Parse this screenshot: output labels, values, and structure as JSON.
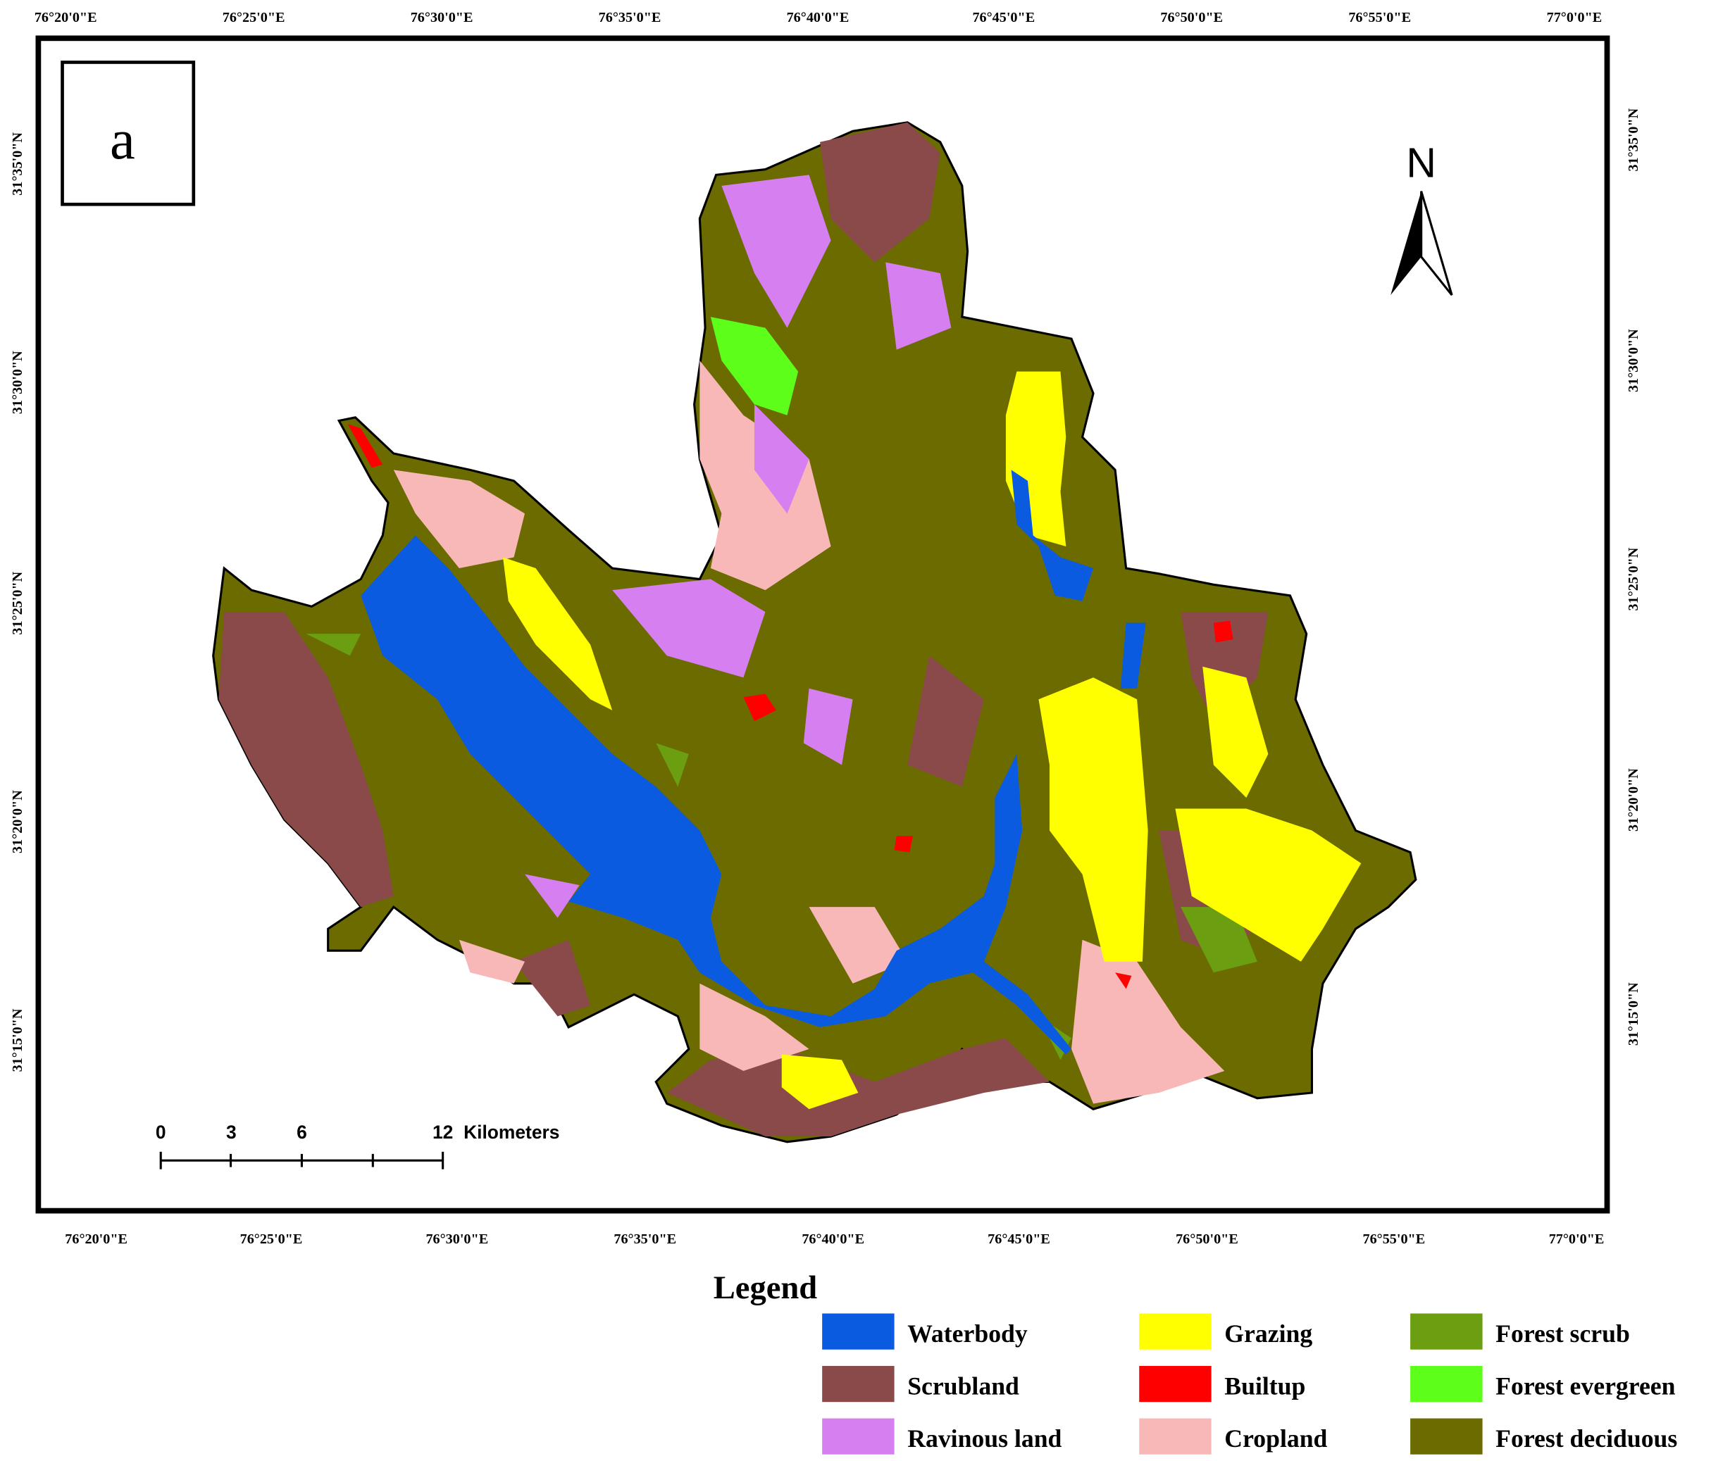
{
  "panel_label": "a",
  "north_label": "N",
  "axes": {
    "top": [
      "76°20'0\"E",
      "76°25'0\"E",
      "76°30'0\"E",
      "76°35'0\"E",
      "76°40'0\"E",
      "76°45'0\"E",
      "76°50'0\"E",
      "76°55'0\"E",
      "77°0'0\"E"
    ],
    "bottom": [
      "76°20'0\"E",
      "76°25'0\"E",
      "76°30'0\"E",
      "76°35'0\"E",
      "76°40'0\"E",
      "76°45'0\"E",
      "76°50'0\"E",
      "76°55'0\"E",
      "77°0'0\"E"
    ],
    "left": [
      "31°35'0\"N",
      "31°30'0\"N",
      "31°25'0\"N",
      "31°20'0\"N",
      "31°15'0\"N"
    ],
    "right": [
      "31°35'0\"N",
      "31°30'0\"N",
      "31°25'0\"N",
      "31°20'0\"N",
      "31°15'0\"N"
    ]
  },
  "scale_bar": {
    "ticks": [
      0,
      3,
      6,
      12
    ],
    "unit": "Kilometers"
  },
  "legend": {
    "title": "Legend",
    "items": [
      {
        "name": "Waterbody",
        "color": "#0a5be0"
      },
      {
        "name": "Scrubland",
        "color": "#8b4a4a"
      },
      {
        "name": "Ravinous land",
        "color": "#d67ff0"
      },
      {
        "name": "Grazing",
        "color": "#ffff00"
      },
      {
        "name": "Builtup",
        "color": "#ff0000"
      },
      {
        "name": "Cropland",
        "color": "#f8b8b8"
      },
      {
        "name": "Forest scrub",
        "color": "#6b9e10"
      },
      {
        "name": "Forest evergreen",
        "color": "#5dff1a"
      },
      {
        "name": "Forest deciduous",
        "color": "#6b6b00"
      }
    ]
  }
}
